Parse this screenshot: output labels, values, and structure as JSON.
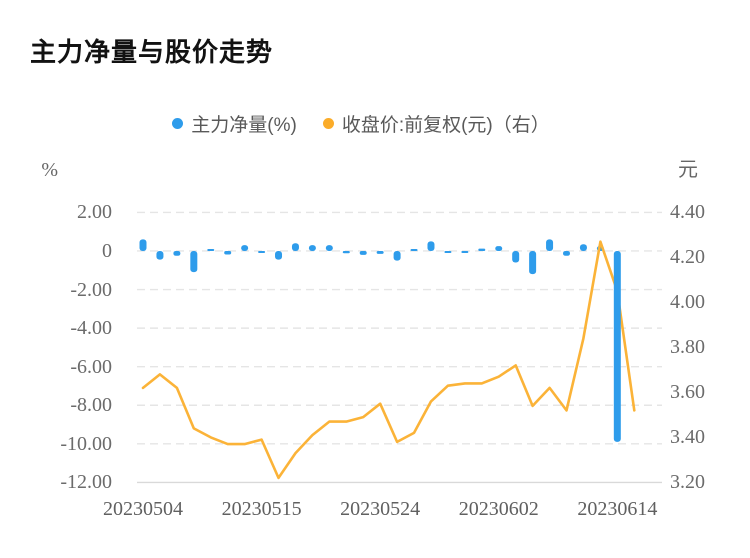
{
  "header": {
    "title": "主力净量与股价走势"
  },
  "legend": {
    "items": [
      {
        "label": "主力净量(%)",
        "color": "#2E9CEB"
      },
      {
        "label": "收盘价:前复权(元)（右）",
        "color": "#FBAC29"
      }
    ]
  },
  "chart_data": {
    "type": "combo",
    "title": "主力净量与股价走势",
    "grid": {
      "horizontal_gridlines": true,
      "gridline_style": "dashed"
    },
    "legend_position": "top-center",
    "x_tick_labels": [
      {
        "index": 0,
        "label": "20230504"
      },
      {
        "index": 7,
        "label": "20230515"
      },
      {
        "index": 14,
        "label": "20230524"
      },
      {
        "index": 21,
        "label": "20230602"
      },
      {
        "index": 28,
        "label": "20230614"
      }
    ],
    "left_axis": {
      "unit": "%",
      "min": -12.0,
      "max": 2.0,
      "ticks": [
        "2.00",
        "0",
        "-2.00",
        "-4.00",
        "-6.00",
        "-8.00",
        "-10.00",
        "-12.00"
      ]
    },
    "right_axis": {
      "unit": "元",
      "min": 3.2,
      "max": 4.4,
      "ticks": [
        "4.40",
        "4.20",
        "4.00",
        "3.80",
        "3.60",
        "3.40",
        "3.20"
      ]
    },
    "series": [
      {
        "name": "主力净量(%)",
        "type": "bar",
        "axis": "left",
        "color": "#2E9CEB",
        "values": [
          0.6,
          -0.45,
          -0.25,
          -1.1,
          0.08,
          -0.18,
          0.3,
          -0.08,
          -0.45,
          0.4,
          0.3,
          0.3,
          -0.12,
          -0.2,
          -0.15,
          -0.5,
          0.1,
          0.5,
          -0.08,
          -0.1,
          0.12,
          0.25,
          -0.6,
          -1.2,
          0.6,
          -0.25,
          0.35,
          0.25,
          -9.9,
          null
        ]
      },
      {
        "name": "收盘价:前复权(元)（右）",
        "type": "line",
        "axis": "right",
        "color": "#FBB338",
        "values": [
          3.62,
          3.68,
          3.62,
          3.44,
          3.4,
          3.37,
          3.37,
          3.39,
          3.22,
          3.33,
          3.41,
          3.47,
          3.47,
          3.49,
          3.55,
          3.38,
          3.42,
          3.56,
          3.63,
          3.64,
          3.64,
          3.67,
          3.72,
          3.54,
          3.62,
          3.52,
          3.84,
          4.27,
          4.05,
          3.52
        ]
      }
    ]
  }
}
